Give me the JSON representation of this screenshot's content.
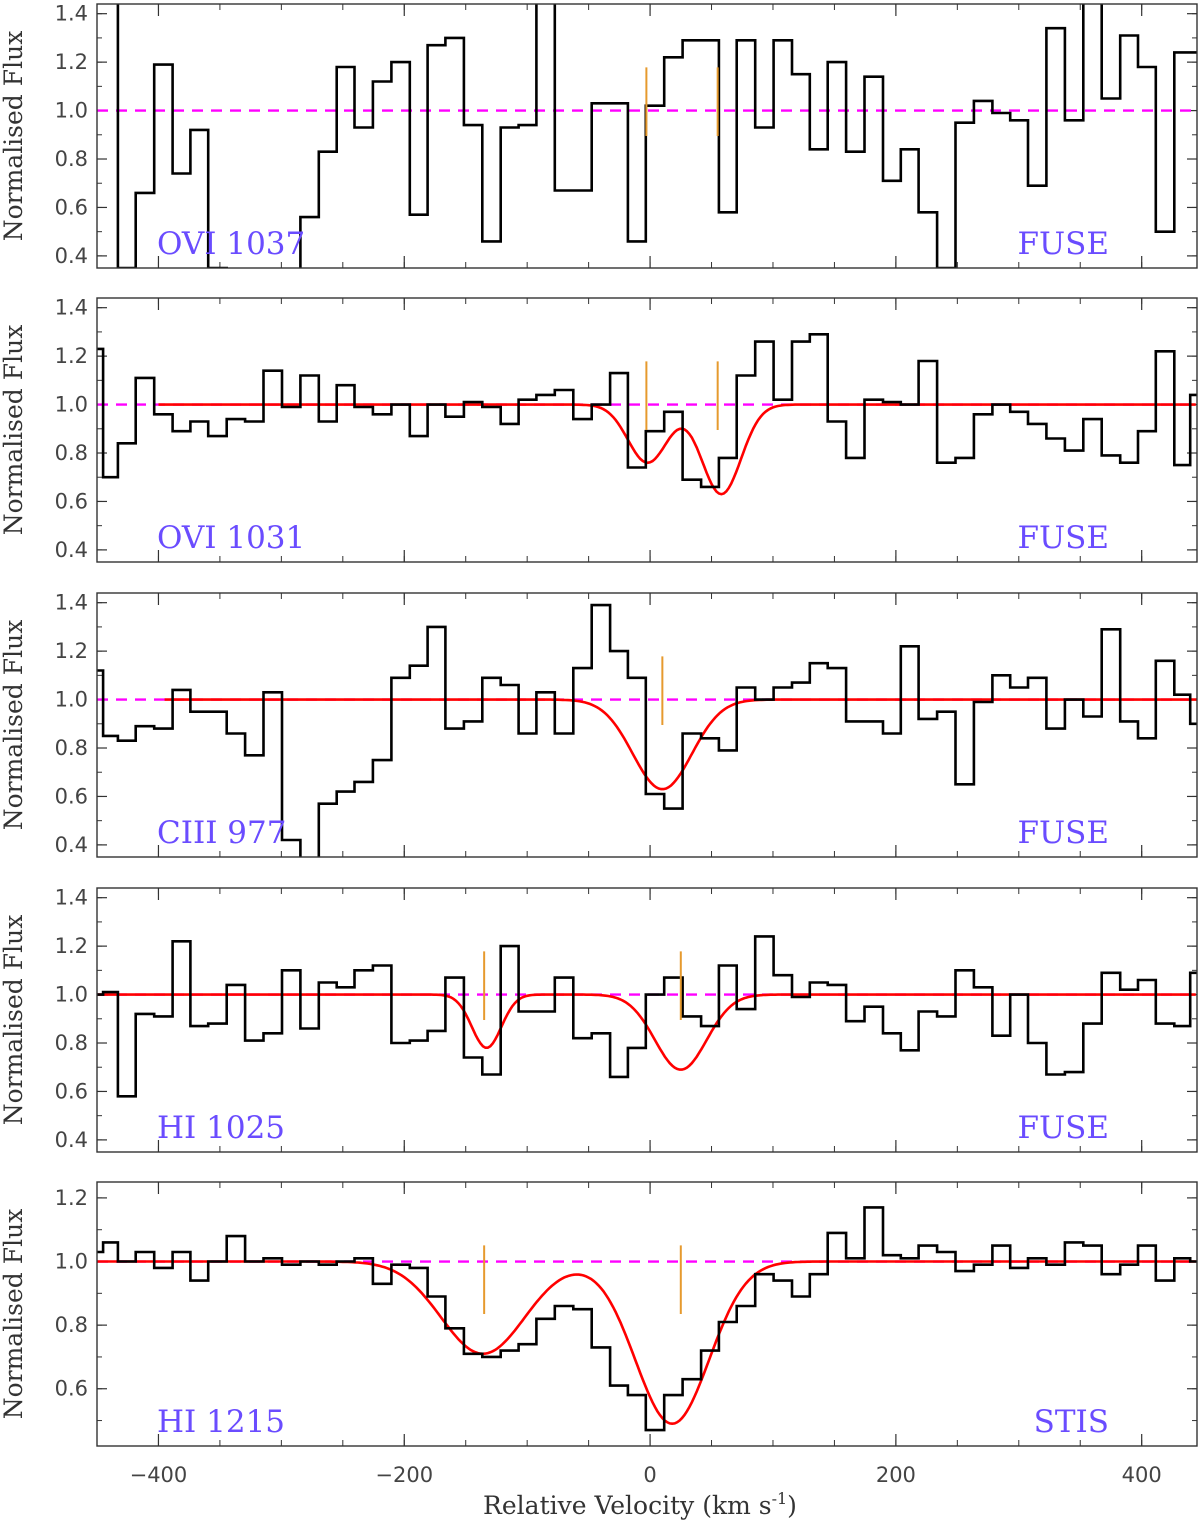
{
  "figure": {
    "xlabel": "Relative Velocity (km s",
    "xlabel_sup": "-1",
    "xlabel_end": ")",
    "ylabel": "Normalised Flux"
  },
  "colors": {
    "data": "#000000",
    "fit": "#ff0000",
    "continuum": "#ff00ff",
    "marker": "#e69a2e",
    "label": "#6a4cff"
  },
  "chart_data": [
    {
      "type": "line",
      "ion": "OVI 1037",
      "instrument": "FUSE",
      "xlim": [
        -450,
        445
      ],
      "ylim": [
        0.35,
        1.44
      ],
      "yticks": [
        0.4,
        0.6,
        0.8,
        1.0,
        1.2,
        1.4
      ],
      "xticks": [
        -400,
        -200,
        0,
        200,
        400
      ],
      "continuum": 1.0,
      "markers": [
        -3,
        55
      ],
      "has_fit": false,
      "series": [
        {
          "x": [
            -450,
            -440,
            -426,
            -411,
            -396,
            -381,
            -367,
            -352,
            -337,
            -322,
            -307,
            -292,
            -277,
            -262,
            -248,
            -233,
            -218,
            -203,
            -188,
            -174,
            -159,
            -144,
            -129,
            -114,
            -100,
            -85,
            -70,
            -55,
            -40,
            -25,
            -11,
            4,
            19,
            34,
            49,
            63,
            78,
            93,
            108,
            123,
            137,
            152,
            167,
            182,
            197,
            211,
            226,
            241,
            256,
            271,
            286,
            300,
            315,
            330,
            345,
            360,
            375,
            390,
            404,
            419,
            434,
            445
          ],
          "y": [
            1.5,
            1.5,
            0.35,
            0.66,
            1.19,
            0.74,
            0.92,
            0.35,
            0.3,
            0.3,
            0.3,
            0.3,
            0.56,
            0.83,
            1.18,
            0.93,
            1.12,
            1.2,
            0.57,
            1.27,
            1.3,
            0.94,
            0.46,
            0.93,
            0.94,
            1.5,
            0.67,
            0.67,
            1.03,
            1.03,
            0.46,
            1.02,
            1.22,
            1.29,
            1.29,
            0.58,
            1.29,
            0.93,
            1.29,
            1.15,
            0.84,
            1.2,
            0.83,
            1.14,
            0.71,
            0.84,
            0.58,
            0.35,
            0.95,
            1.04,
            0.99,
            0.96,
            0.69,
            1.34,
            0.96,
            1.5,
            1.05,
            1.31,
            1.18,
            0.5,
            1.24,
            1.24
          ]
        }
      ]
    },
    {
      "type": "line",
      "ion": "OVI 1031",
      "instrument": "FUSE",
      "xlim": [
        -450,
        445
      ],
      "ylim": [
        0.35,
        1.44
      ],
      "yticks": [
        0.4,
        0.6,
        0.8,
        1.0,
        1.2,
        1.4
      ],
      "xticks": [
        -400,
        -200,
        0,
        200,
        400
      ],
      "continuum": 1.0,
      "markers": [
        -3,
        55
      ],
      "has_fit": true,
      "fit_range": [
        -400,
        445
      ],
      "fit_components": [
        {
          "center": -2,
          "depth": 0.24,
          "sigma": 16
        },
        {
          "center": 58,
          "depth": 0.37,
          "sigma": 16
        }
      ],
      "series": [
        {
          "x": [
            -450,
            -440,
            -426,
            -411,
            -396,
            -381,
            -367,
            -352,
            -337,
            -322,
            -307,
            -292,
            -277,
            -262,
            -248,
            -233,
            -218,
            -203,
            -188,
            -174,
            -159,
            -144,
            -129,
            -114,
            -100,
            -85,
            -70,
            -55,
            -40,
            -25,
            -11,
            4,
            19,
            34,
            49,
            63,
            78,
            93,
            108,
            123,
            137,
            152,
            167,
            182,
            197,
            211,
            226,
            241,
            256,
            271,
            286,
            300,
            315,
            330,
            345,
            360,
            375,
            390,
            404,
            419,
            434,
            445
          ],
          "y": [
            1.23,
            0.7,
            0.84,
            1.11,
            0.96,
            0.89,
            0.93,
            0.87,
            0.94,
            0.93,
            1.14,
            0.99,
            1.12,
            0.93,
            1.08,
            0.99,
            0.96,
            1.0,
            0.87,
            1.0,
            0.95,
            1.01,
            0.99,
            0.92,
            1.02,
            1.04,
            1.06,
            0.94,
            1.0,
            1.13,
            0.74,
            0.89,
            0.97,
            0.69,
            0.66,
            0.78,
            1.12,
            1.26,
            1.02,
            1.26,
            1.29,
            0.93,
            0.78,
            1.02,
            1.01,
            1.0,
            1.18,
            0.76,
            0.78,
            0.96,
            1.0,
            0.97,
            0.92,
            0.86,
            0.81,
            0.94,
            0.79,
            0.76,
            0.89,
            1.22,
            0.75,
            1.04
          ]
        }
      ]
    },
    {
      "type": "line",
      "ion": "CIII 977",
      "instrument": "FUSE",
      "xlim": [
        -450,
        445
      ],
      "ylim": [
        0.35,
        1.44
      ],
      "yticks": [
        0.4,
        0.6,
        0.8,
        1.0,
        1.2,
        1.4
      ],
      "xticks": [
        -400,
        -200,
        0,
        200,
        400
      ],
      "continuum": 1.0,
      "markers": [
        10
      ],
      "has_fit": true,
      "fit_range": [
        -395,
        445
      ],
      "fit_components": [
        {
          "center": 10,
          "depth": 0.37,
          "sigma": 24
        }
      ],
      "series": [
        {
          "x": [
            -450,
            -440,
            -426,
            -411,
            -396,
            -381,
            -367,
            -352,
            -337,
            -322,
            -307,
            -292,
            -277,
            -262,
            -248,
            -233,
            -218,
            -203,
            -188,
            -174,
            -159,
            -144,
            -129,
            -114,
            -100,
            -85,
            -70,
            -55,
            -40,
            -25,
            -11,
            4,
            19,
            34,
            49,
            63,
            78,
            93,
            108,
            123,
            137,
            152,
            167,
            182,
            197,
            211,
            226,
            241,
            256,
            271,
            286,
            300,
            315,
            330,
            345,
            360,
            375,
            390,
            404,
            419,
            434,
            445
          ],
          "y": [
            1.12,
            0.85,
            0.83,
            0.89,
            0.88,
            1.04,
            0.95,
            0.95,
            0.86,
            0.77,
            1.03,
            0.42,
            0.3,
            0.57,
            0.62,
            0.66,
            0.75,
            1.09,
            1.14,
            1.3,
            0.88,
            0.91,
            1.09,
            1.06,
            0.86,
            1.03,
            0.86,
            1.13,
            1.39,
            1.2,
            1.09,
            0.61,
            0.55,
            0.86,
            0.84,
            0.79,
            1.05,
            1.0,
            1.05,
            1.07,
            1.15,
            1.13,
            0.91,
            0.91,
            0.86,
            1.22,
            0.92,
            0.95,
            0.65,
            0.99,
            1.1,
            1.05,
            1.09,
            0.88,
            1.0,
            0.93,
            1.29,
            0.91,
            0.84,
            1.16,
            1.02,
            0.9
          ]
        }
      ]
    },
    {
      "type": "line",
      "ion": "HI 1025",
      "instrument": "FUSE",
      "xlim": [
        -450,
        445
      ],
      "ylim": [
        0.35,
        1.44
      ],
      "yticks": [
        0.4,
        0.6,
        0.8,
        1.0,
        1.2,
        1.4
      ],
      "xticks": [
        -400,
        -200,
        0,
        200,
        400
      ],
      "continuum": 1.0,
      "markers": [
        -135,
        25
      ],
      "has_fit": true,
      "fit_range": [
        -450,
        445
      ],
      "fit_components": [
        {
          "center": -133,
          "depth": 0.22,
          "sigma": 12
        },
        {
          "center": 25,
          "depth": 0.31,
          "sigma": 21
        }
      ],
      "series": [
        {
          "x": [
            -450,
            -440,
            -426,
            -411,
            -396,
            -381,
            -367,
            -352,
            -337,
            -322,
            -307,
            -292,
            -277,
            -262,
            -248,
            -233,
            -218,
            -203,
            -188,
            -174,
            -159,
            -144,
            -129,
            -114,
            -100,
            -85,
            -70,
            -55,
            -40,
            -25,
            -11,
            4,
            19,
            34,
            49,
            63,
            78,
            93,
            108,
            123,
            137,
            152,
            167,
            182,
            197,
            211,
            226,
            241,
            256,
            271,
            286,
            300,
            315,
            330,
            345,
            360,
            375,
            390,
            404,
            419,
            434,
            445
          ],
          "y": [
            1.0,
            1.01,
            0.58,
            0.92,
            0.91,
            1.22,
            0.87,
            0.88,
            1.04,
            0.81,
            0.84,
            1.1,
            0.86,
            1.05,
            1.03,
            1.1,
            1.12,
            0.8,
            0.81,
            0.85,
            1.07,
            0.74,
            0.67,
            1.2,
            0.93,
            0.93,
            1.07,
            0.82,
            0.84,
            0.66,
            0.78,
            1.0,
            1.07,
            0.91,
            0.87,
            1.12,
            0.94,
            1.24,
            1.08,
            0.99,
            1.05,
            1.04,
            0.89,
            0.95,
            0.84,
            0.77,
            0.93,
            0.91,
            1.1,
            1.03,
            0.83,
            1.0,
            0.8,
            0.67,
            0.68,
            0.88,
            1.09,
            1.02,
            1.06,
            0.88,
            0.87,
            1.09
          ]
        }
      ]
    },
    {
      "type": "line",
      "ion": "HI 1215",
      "instrument": "STIS",
      "xlim": [
        -450,
        445
      ],
      "ylim": [
        0.42,
        1.25
      ],
      "yticks": [
        0.4,
        0.6,
        0.8,
        1.0,
        1.2
      ],
      "xticks": [
        -400,
        -200,
        0,
        200,
        400
      ],
      "xticklabels": [
        "-400",
        "-200",
        "0",
        "200",
        "400"
      ],
      "continuum": 1.0,
      "markers": [
        -135,
        25
      ],
      "has_fit": true,
      "fit_range": [
        -450,
        445
      ],
      "fit_components": [
        {
          "center": -136,
          "depth": 0.29,
          "sigma": 34
        },
        {
          "center": 18,
          "depth": 0.51,
          "sigma": 30
        }
      ],
      "series": [
        {
          "x": [
            -450,
            -440,
            -426,
            -411,
            -396,
            -381,
            -367,
            -352,
            -337,
            -322,
            -307,
            -292,
            -277,
            -262,
            -248,
            -233,
            -218,
            -203,
            -188,
            -174,
            -159,
            -144,
            -129,
            -114,
            -100,
            -85,
            -70,
            -55,
            -40,
            -25,
            -11,
            4,
            19,
            34,
            49,
            63,
            78,
            93,
            108,
            123,
            137,
            152,
            167,
            182,
            197,
            211,
            226,
            241,
            256,
            271,
            286,
            300,
            315,
            330,
            345,
            360,
            375,
            390,
            404,
            419,
            434,
            445
          ],
          "y": [
            1.03,
            1.06,
            1.0,
            1.03,
            0.98,
            1.03,
            0.94,
            1.0,
            1.08,
            1.0,
            1.01,
            0.99,
            1.0,
            0.99,
            1.0,
            1.01,
            0.93,
            0.99,
            0.98,
            0.89,
            0.79,
            0.71,
            0.7,
            0.72,
            0.74,
            0.82,
            0.86,
            0.85,
            0.73,
            0.61,
            0.58,
            0.47,
            0.58,
            0.63,
            0.72,
            0.81,
            0.86,
            0.96,
            0.94,
            0.89,
            0.96,
            1.09,
            1.01,
            1.17,
            1.02,
            1.01,
            1.05,
            1.03,
            0.97,
            0.99,
            1.05,
            0.98,
            1.01,
            0.99,
            1.06,
            1.05,
            0.96,
            0.99,
            1.05,
            0.94,
            1.01,
            1.0
          ]
        }
      ]
    }
  ]
}
